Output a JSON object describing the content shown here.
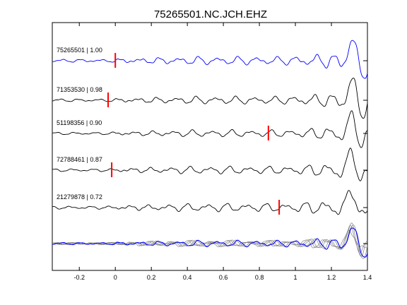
{
  "chart_data": {
    "type": "line",
    "title": "75265501.NC.JCH.EHZ",
    "xlabel": "",
    "ylabel": "",
    "xlim": [
      -0.35,
      1.4
    ],
    "x_ticks": [
      -0.2,
      0,
      0.2,
      0.4,
      0.6,
      0.8,
      1,
      1.2,
      1.4
    ],
    "x_tick_labels": [
      "-0.2",
      "0",
      "0.2",
      "0.4",
      "0.6",
      "0.8",
      "1",
      "1.2",
      "1.4"
    ],
    "grid": false,
    "colors": {
      "reference": "#0000ff",
      "other": "#000000",
      "overlay_other": "#808080",
      "pick": "#ff0000"
    },
    "series": [
      {
        "name": "75265501 | 1.00",
        "label": "75265501 | 1.00",
        "pick_x": 0.0,
        "role": "reference"
      },
      {
        "name": "71353530 | 0.98",
        "label": "71353530 | 0.98",
        "pick_x": -0.04,
        "role": "other"
      },
      {
        "name": "51198356 | 0.90",
        "label": "51198356 | 0.90",
        "pick_x": 0.85,
        "role": "other"
      },
      {
        "name": "72788461 | 0.87",
        "label": "72788461 | 0.87",
        "pick_x": -0.02,
        "role": "other"
      },
      {
        "name": "21279878 | 0.72",
        "label": "21279878 | 0.72",
        "pick_x": 0.91,
        "role": "other"
      }
    ]
  }
}
